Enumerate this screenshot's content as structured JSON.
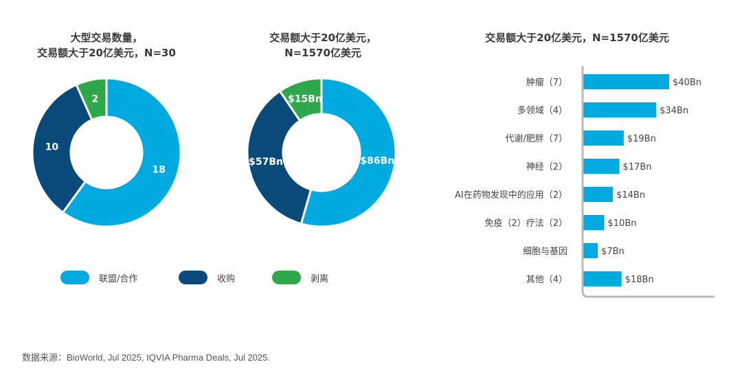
{
  "colors": {
    "alliance": "#00a9e0",
    "acquisition": "#0a4a7a",
    "divestiture": "#2ea84a",
    "axis": "#b8b8b8"
  },
  "legend": [
    {
      "label": "联盟/合作",
      "color": "#00a9e0"
    },
    {
      "label": "收购",
      "color": "#0a4a7a"
    },
    {
      "label": "剥离",
      "color": "#2ea84a"
    }
  ],
  "source": "数据来源：BioWorld, Jul 2025, IQVIA Pharma Deals, Jul 2025.",
  "chart_data": [
    {
      "type": "pie",
      "title_lines": [
        "大型交易数量，",
        "交易额大于20亿美元，N=30"
      ],
      "slices": [
        {
          "label": "联盟/合作",
          "value": 18,
          "display": "18"
        },
        {
          "label": "收购",
          "value": 10,
          "display": "10"
        },
        {
          "label": "剥离",
          "value": 2,
          "display": "2"
        }
      ]
    },
    {
      "type": "pie",
      "title_lines": [
        "交易额大于20亿美元，",
        "N=1570亿美元"
      ],
      "slices": [
        {
          "label": "联盟/合作",
          "value": 86,
          "display": "$86Bn"
        },
        {
          "label": "收购",
          "value": 57,
          "display": "$57Bn"
        },
        {
          "label": "剥离",
          "value": 15,
          "display": "$15Bn"
        }
      ]
    },
    {
      "type": "bar",
      "orientation": "horizontal",
      "title": "交易额大于20亿美元，N=1570亿美元",
      "categories": [
        "肿瘤（7）",
        "多领域（4）",
        "代谢/肥胖（7）",
        "神经（2）",
        "AI在药物发现中的应用（2）",
        "免疫（2）疗法（2）",
        "细胞与基因",
        "其他（4）"
      ],
      "values": [
        40,
        34,
        19,
        17,
        14,
        10,
        7,
        18
      ],
      "value_labels": [
        "$40Bn",
        "$34Bn",
        "$19Bn",
        "$17Bn",
        "$14Bn",
        "$10Bn",
        "$7Bn",
        "$18Bn"
      ]
    }
  ]
}
